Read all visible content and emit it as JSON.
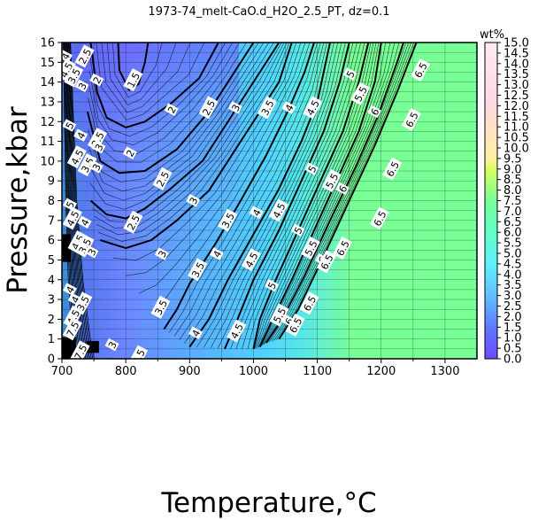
{
  "chart_data": {
    "type": "heatmap",
    "title": "1973-74_melt-CaO.d_H2O_2.5_PT, dz=0.1",
    "xlabel": "Temperature,°C",
    "ylabel": "Pressure,kbar",
    "xlim": [
      700,
      1350
    ],
    "ylim": [
      0,
      16
    ],
    "x_ticks": [
      "700",
      "800",
      "900",
      "1000",
      "1100",
      "1200",
      "1300"
    ],
    "y_ticks": [
      "0",
      "1",
      "2",
      "3",
      "4",
      "5",
      "6",
      "7",
      "8",
      "9",
      "10",
      "11",
      "12",
      "13",
      "14",
      "15",
      "16"
    ],
    "grid": true,
    "colorbar": {
      "label": "wt%",
      "range": [
        0,
        15
      ],
      "ticks": [
        "0.0",
        "0.5",
        "1.0",
        "1.5",
        "2.0",
        "2.5",
        "3.0",
        "3.5",
        "4.0",
        "4.5",
        "5.0",
        "5.5",
        "6.0",
        "6.5",
        "7.0",
        "7.5",
        "8.0",
        "8.5",
        "9.0",
        "9.5",
        "10.0",
        "10.5",
        "11.0",
        "11.5",
        "12.0",
        "12.5",
        "13.0",
        "13.5",
        "14.0",
        "14.5",
        "15.0"
      ],
      "colors": {
        "low": "#6a5cff",
        "mid_low": "#5fd0ff",
        "mid": "#78ff96",
        "mid_high": "#d8ff60",
        "high": "#ffffff"
      }
    },
    "contours": [
      {
        "label": "1.5",
        "points": [
          [
            788,
            16
          ],
          [
            790,
            14.6
          ],
          [
            805,
            13.6
          ],
          [
            820,
            13.9
          ],
          [
            830,
            15
          ],
          [
            835,
            16
          ]
        ]
      },
      {
        "label": "2",
        "points": [
          [
            745,
            16
          ],
          [
            755,
            13.5
          ],
          [
            770,
            12.2
          ],
          [
            800,
            11.7
          ],
          [
            830,
            12
          ],
          [
            870,
            12.9
          ],
          [
            915,
            14.2
          ],
          [
            945,
            16
          ]
        ]
      },
      {
        "label": "2.5",
        "points": [
          [
            740,
            12.5
          ],
          [
            760,
            10
          ],
          [
            790,
            9.4
          ],
          [
            830,
            9.5
          ],
          [
            880,
            10.6
          ],
          [
            930,
            12.5
          ],
          [
            970,
            14.5
          ],
          [
            1000,
            16
          ]
        ]
      },
      {
        "label": "2.5",
        "points": [
          [
            745,
            8
          ],
          [
            770,
            7.3
          ],
          [
            800,
            7.1
          ],
          [
            830,
            7.6
          ],
          [
            870,
            8.6
          ],
          [
            920,
            10
          ],
          [
            960,
            12
          ],
          [
            1000,
            14
          ],
          [
            1040,
            16
          ]
        ]
      },
      {
        "label": "3",
        "points": [
          [
            760,
            6
          ],
          [
            800,
            5.6
          ],
          [
            840,
            6
          ],
          [
            880,
            7
          ],
          [
            930,
            8.5
          ],
          [
            970,
            10.5
          ],
          [
            1010,
            12.5
          ],
          [
            1040,
            14
          ],
          [
            1060,
            16
          ]
        ]
      },
      {
        "label": "3.5",
        "points": [
          [
            860,
            1.5
          ],
          [
            880,
            2.5
          ],
          [
            900,
            3.8
          ],
          [
            940,
            5.8
          ],
          [
            980,
            8
          ],
          [
            1020,
            10.3
          ],
          [
            1055,
            12.6
          ],
          [
            1080,
            14.5
          ],
          [
            1095,
            16
          ]
        ]
      },
      {
        "label": "4",
        "points": [
          [
            900,
            0.6
          ],
          [
            930,
            2
          ],
          [
            960,
            4
          ],
          [
            1000,
            6.3
          ],
          [
            1040,
            8.6
          ],
          [
            1075,
            11
          ],
          [
            1100,
            13
          ],
          [
            1120,
            16
          ]
        ]
      },
      {
        "label": "4.5",
        "points": [
          [
            955,
            0.5
          ],
          [
            975,
            2
          ],
          [
            1000,
            4
          ],
          [
            1040,
            6.5
          ],
          [
            1075,
            9
          ],
          [
            1110,
            11.5
          ],
          [
            1135,
            14
          ],
          [
            1150,
            16
          ]
        ]
      },
      {
        "label": "5",
        "points": [
          [
            1000,
            0.5
          ],
          [
            1010,
            2
          ],
          [
            1035,
            4
          ],
          [
            1070,
            6.5
          ],
          [
            1105,
            9
          ],
          [
            1140,
            11.5
          ],
          [
            1165,
            14
          ],
          [
            1180,
            16
          ]
        ]
      },
      {
        "label": "5.5",
        "points": [
          [
            1010,
            0.6
          ],
          [
            1030,
            2
          ],
          [
            1060,
            4
          ],
          [
            1095,
            6.5
          ],
          [
            1130,
            9
          ],
          [
            1165,
            11.5
          ],
          [
            1190,
            14
          ],
          [
            1200,
            16
          ]
        ]
      },
      {
        "label": "6",
        "points": [
          [
            1020,
            0.8
          ],
          [
            1045,
            2
          ],
          [
            1080,
            4.2
          ],
          [
            1120,
            7
          ],
          [
            1160,
            9.7
          ],
          [
            1195,
            12.3
          ],
          [
            1225,
            15
          ],
          [
            1235,
            16
          ]
        ]
      },
      {
        "label": "6.5",
        "points": [
          [
            1040,
            1
          ],
          [
            1070,
            2.5
          ],
          [
            1110,
            5.2
          ],
          [
            1150,
            8
          ],
          [
            1190,
            10.8
          ],
          [
            1225,
            13.5
          ],
          [
            1255,
            16
          ]
        ]
      }
    ],
    "contour_labels": [
      {
        "text": "1.5",
        "x": 812,
        "y": 14.1
      },
      {
        "text": "2",
        "x": 872,
        "y": 12.6
      },
      {
        "text": "2",
        "x": 807,
        "y": 10.4
      },
      {
        "text": "2.5",
        "x": 930,
        "y": 12.7
      },
      {
        "text": "2.5",
        "x": 858,
        "y": 9.1
      },
      {
        "text": "2.5",
        "x": 812,
        "y": 6.9
      },
      {
        "text": "3",
        "x": 972,
        "y": 12.7
      },
      {
        "text": "3",
        "x": 906,
        "y": 8.0
      },
      {
        "text": "3",
        "x": 857,
        "y": 5.3
      },
      {
        "text": "3.5",
        "x": 1022,
        "y": 12.7
      },
      {
        "text": "3.5",
        "x": 960,
        "y": 7.0
      },
      {
        "text": "3.5",
        "x": 913,
        "y": 4.5
      },
      {
        "text": "3.5",
        "x": 855,
        "y": 2.6
      },
      {
        "text": "4",
        "x": 1056,
        "y": 12.7
      },
      {
        "text": "4",
        "x": 1005,
        "y": 7.4
      },
      {
        "text": "4",
        "x": 943,
        "y": 5.3
      },
      {
        "text": "4",
        "x": 910,
        "y": 1.3
      },
      {
        "text": "4.5",
        "x": 1093,
        "y": 12.7
      },
      {
        "text": "4.5",
        "x": 1040,
        "y": 7.5
      },
      {
        "text": "4.5",
        "x": 997,
        "y": 5.0
      },
      {
        "text": "4.5",
        "x": 974,
        "y": 1.4
      },
      {
        "text": "5",
        "x": 1152,
        "y": 14.4
      },
      {
        "text": "5",
        "x": 1092,
        "y": 9.6
      },
      {
        "text": "5",
        "x": 1070,
        "y": 6.5
      },
      {
        "text": "5",
        "x": 1029,
        "y": 3.7
      },
      {
        "text": "5.5",
        "x": 1168,
        "y": 13.4
      },
      {
        "text": "5.5",
        "x": 1123,
        "y": 9.0
      },
      {
        "text": "5.5",
        "x": 1090,
        "y": 5.6
      },
      {
        "text": "5.5",
        "x": 1041,
        "y": 2.2
      },
      {
        "text": "6",
        "x": 1190,
        "y": 12.5
      },
      {
        "text": "6",
        "x": 1140,
        "y": 8.6
      },
      {
        "text": "6",
        "x": 1108,
        "y": 5.0
      },
      {
        "text": "6",
        "x": 1056,
        "y": 1.9
      },
      {
        "text": "6.5",
        "x": 1262,
        "y": 14.6
      },
      {
        "text": "6.5",
        "x": 1248,
        "y": 12.1
      },
      {
        "text": "6.5",
        "x": 1218,
        "y": 9.6
      },
      {
        "text": "6.5",
        "x": 1198,
        "y": 7.1
      },
      {
        "text": "6.5",
        "x": 1140,
        "y": 5.6
      },
      {
        "text": "6.5",
        "x": 1115,
        "y": 4.9
      },
      {
        "text": "6.5",
        "x": 1088,
        "y": 2.8
      },
      {
        "text": "6.5",
        "x": 1066,
        "y": 1.7
      },
      {
        "text": "4",
        "x": 706,
        "y": 15.3
      },
      {
        "text": "2.5",
        "x": 736,
        "y": 15.3
      },
      {
        "text": "4.5",
        "x": 707,
        "y": 14.6
      },
      {
        "text": "3.5",
        "x": 719,
        "y": 14.3
      },
      {
        "text": "2",
        "x": 755,
        "y": 14.1
      },
      {
        "text": "3",
        "x": 732,
        "y": 13.8
      },
      {
        "text": "5",
        "x": 712,
        "y": 11.8
      },
      {
        "text": "4",
        "x": 730,
        "y": 11.3
      },
      {
        "text": "2.5",
        "x": 756,
        "y": 11.1
      },
      {
        "text": "3",
        "x": 758,
        "y": 10.7
      },
      {
        "text": "4.5",
        "x": 724,
        "y": 10.2
      },
      {
        "text": "3.5",
        "x": 740,
        "y": 9.8
      },
      {
        "text": "3",
        "x": 754,
        "y": 9.7
      },
      {
        "text": "5",
        "x": 713,
        "y": 7.8
      },
      {
        "text": "4.5",
        "x": 717,
        "y": 7.1
      },
      {
        "text": "4",
        "x": 736,
        "y": 6.9
      },
      {
        "text": "4.5",
        "x": 725,
        "y": 5.9
      },
      {
        "text": "3.5",
        "x": 736,
        "y": 5.7
      },
      {
        "text": "3",
        "x": 747,
        "y": 5.4
      },
      {
        "text": "4",
        "x": 713,
        "y": 3.5
      },
      {
        "text": "4",
        "x": 721,
        "y": 3.0
      },
      {
        "text": "3.5",
        "x": 733,
        "y": 2.8
      },
      {
        "text": "4.5",
        "x": 718,
        "y": 2.1
      },
      {
        "text": "7.5",
        "x": 717,
        "y": 1.5
      },
      {
        "text": "17.5",
        "x": 727,
        "y": 0.2
      },
      {
        "text": "3",
        "x": 779,
        "y": 0.7
      },
      {
        "text": "2.5",
        "x": 820,
        "y": 0.1
      }
    ]
  }
}
